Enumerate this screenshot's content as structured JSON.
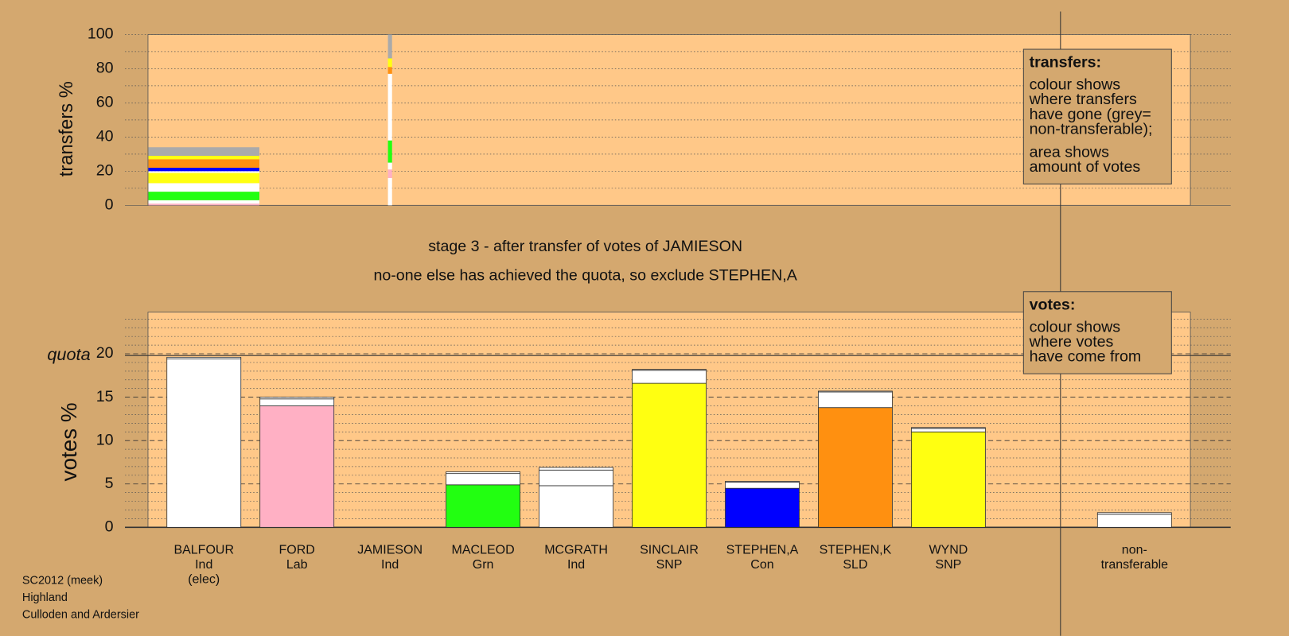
{
  "chart_data": [
    {
      "type": "stacked-bar",
      "y_label": "transfers %",
      "ylim": [
        0,
        100
      ],
      "yticks": [
        0,
        20,
        40,
        60,
        80,
        100
      ],
      "minor_yticks": [
        10,
        30,
        50,
        70,
        90
      ],
      "stacks": [
        {
          "transferred": 2.7,
          "segments": [
            {
              "color": "#ffb0c4",
              "value": 1
            },
            {
              "color": "#ffffff",
              "value": 2
            },
            {
              "color": "#22ff11",
              "value": 5
            },
            {
              "color": "#ffffff",
              "value": 5
            },
            {
              "color": "#ffff11",
              "value": 6
            },
            {
              "color": "#ffffff",
              "value": 1
            },
            {
              "color": "#0000ff",
              "value": 2
            },
            {
              "color": "#ff9010",
              "value": 5
            },
            {
              "color": "#ffff11",
              "value": 2
            },
            {
              "color": "#aaaaaa",
              "value": 5
            }
          ]
        },
        null,
        {
          "transferred": 0.1,
          "segments": [
            {
              "color": "#ffffff",
              "value": 16
            },
            {
              "color": "#ffb0c4",
              "value": 5
            },
            {
              "color": "#ffffff",
              "value": 4
            },
            {
              "color": "#22ff11",
              "value": 13
            },
            {
              "color": "#ffffff",
              "value": 39
            },
            {
              "color": "#ff9010",
              "value": 4
            },
            {
              "color": "#ffff11",
              "value": 5
            },
            {
              "color": "#aaaaaa",
              "value": 14
            }
          ]
        },
        null,
        null,
        null,
        null,
        null,
        null,
        null,
        null
      ],
      "note": {
        "title": "transfers:",
        "paragraphs": [
          [
            "colour shows",
            "where transfers",
            "have gone (grey=",
            "non-transferable);"
          ],
          [
            "area shows",
            "amount of votes"
          ]
        ]
      }
    },
    {
      "type": "stacked-bar",
      "title": [
        "stage 3 - after transfer of votes of JAMIESON",
        "no-one else has achieved the quota, so exclude STEPHEN,A"
      ],
      "y_label": "votes %",
      "ylim": [
        0,
        24.8
      ],
      "yticks": [
        0,
        5,
        10,
        15,
        20
      ],
      "minor_yticks": [
        1,
        2,
        3,
        4,
        6,
        7,
        8,
        9,
        11,
        12,
        13,
        14,
        16,
        17,
        18,
        19,
        21,
        22,
        23,
        24
      ],
      "quota": {
        "label": "quota",
        "value": 19.8
      },
      "categories": [
        [
          "BALFOUR",
          "Ind",
          "(elec)"
        ],
        [
          "FORD",
          "Lab"
        ],
        [
          "JAMIESON",
          "Ind"
        ],
        [
          "MACLEOD",
          "Grn"
        ],
        [
          "MCGRATH",
          "Ind"
        ],
        [
          "SINCLAIR",
          "SNP"
        ],
        [
          "STEPHEN,A",
          "Con"
        ],
        [
          "STEPHEN,K",
          "SLD"
        ],
        [
          "WYND",
          "SNP"
        ],
        null,
        [
          "non-",
          "transferable"
        ]
      ],
      "series": [
        {
          "colors": [
            "#ffffff",
            "#ffb0c4",
            "#ffffff",
            "#22ff11",
            "#ffffff",
            "#ffff11",
            "#0000ff",
            "#ff9010",
            "#ffff11",
            null,
            "#ffffff"
          ],
          "values": [
            19.4,
            14.0,
            0,
            4.9,
            4.8,
            16.6,
            4.5,
            13.8,
            11.0,
            null,
            0
          ]
        },
        {
          "color": "#ffffff",
          "values": [
            0,
            0.8,
            0,
            1.3,
            1.8,
            1.5,
            0.7,
            1.8,
            0.4,
            null,
            1.5
          ]
        },
        {
          "color": "#ffffff",
          "values": [
            0.2,
            0.2,
            0,
            0.2,
            0.3,
            0.1,
            0.1,
            0.1,
            0.1,
            null,
            0.2
          ]
        }
      ],
      "note": {
        "title": "votes:",
        "paragraphs": [
          [
            "colour shows",
            "where votes",
            "have come from"
          ]
        ]
      }
    }
  ],
  "footer": [
    "SC2012 (meek)",
    "Highland",
    "Culloden and Ardersier"
  ]
}
